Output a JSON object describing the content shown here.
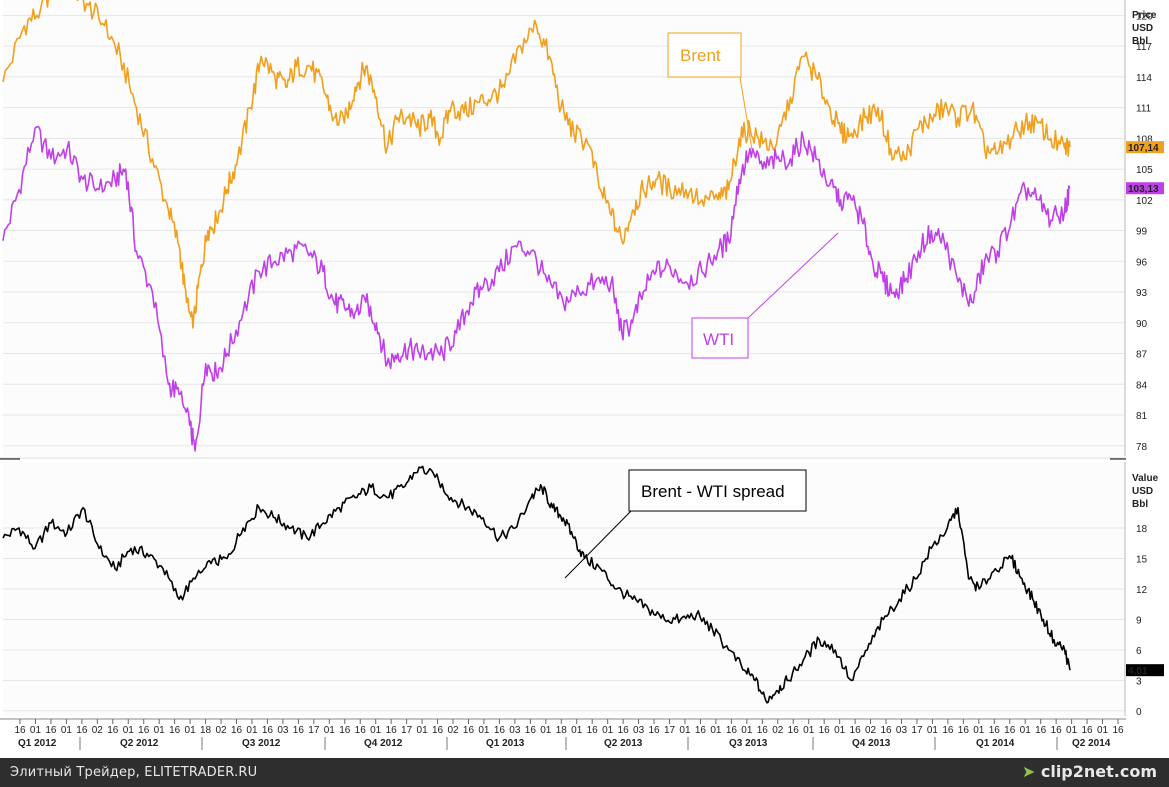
{
  "chart_data": [
    {
      "type": "line",
      "panel": "top",
      "ylabel": [
        "Price",
        "USD",
        "Bbl"
      ],
      "ylim": [
        77,
        121.5
      ],
      "yticks": [
        78,
        81,
        84,
        87,
        90,
        93,
        96,
        99,
        102,
        105,
        108,
        111,
        114,
        117,
        120
      ],
      "grid": true,
      "series": [
        {
          "name": "Brent",
          "color": "#f0a01e",
          "last_value_label": "107,14",
          "points": [
            [
              0,
              113.5
            ],
            [
              0.02,
              119
            ],
            [
              0.035,
              120.5
            ],
            [
              0.05,
              123.5
            ],
            [
              0.065,
              122.5
            ],
            [
              0.08,
              121
            ],
            [
              0.095,
              119
            ],
            [
              0.11,
              116
            ],
            [
              0.125,
              111
            ],
            [
              0.14,
              106
            ],
            [
              0.155,
              101
            ],
            [
              0.165,
              97.5
            ],
            [
              0.172,
              92
            ],
            [
              0.178,
              89.5
            ],
            [
              0.185,
              95
            ],
            [
              0.192,
              99
            ],
            [
              0.2,
              100
            ],
            [
              0.21,
              103
            ],
            [
              0.22,
              106
            ],
            [
              0.232,
              111
            ],
            [
              0.242,
              116
            ],
            [
              0.255,
              114
            ],
            [
              0.265,
              113
            ],
            [
              0.275,
              115
            ],
            [
              0.288,
              115
            ],
            [
              0.3,
              113
            ],
            [
              0.31,
              110
            ],
            [
              0.32,
              109.5
            ],
            [
              0.33,
              113
            ],
            [
              0.34,
              115
            ],
            [
              0.35,
              112
            ],
            [
              0.36,
              107
            ],
            [
              0.37,
              110
            ],
            [
              0.38,
              110
            ],
            [
              0.39,
              109
            ],
            [
              0.4,
              110
            ],
            [
              0.41,
              108
            ],
            [
              0.42,
              111
            ],
            [
              0.432,
              110.5
            ],
            [
              0.445,
              111.5
            ],
            [
              0.458,
              112
            ],
            [
              0.47,
              113
            ],
            [
              0.485,
              117
            ],
            [
              0.5,
              119
            ],
            [
              0.512,
              116
            ],
            [
              0.523,
              111
            ],
            [
              0.535,
              108.5
            ],
            [
              0.548,
              107.5
            ],
            [
              0.56,
              103
            ],
            [
              0.57,
              100.5
            ],
            [
              0.58,
              98
            ],
            [
              0.59,
              101
            ],
            [
              0.6,
              103
            ],
            [
              0.612,
              104
            ],
            [
              0.625,
              103
            ],
            [
              0.64,
              103
            ],
            [
              0.655,
              102
            ],
            [
              0.67,
              102
            ],
            [
              0.68,
              103
            ],
            [
              0.69,
              108
            ],
            [
              0.7,
              109
            ],
            [
              0.712,
              107.5
            ],
            [
              0.725,
              107.5
            ],
            [
              0.738,
              112
            ],
            [
              0.75,
              116
            ],
            [
              0.762,
              114
            ],
            [
              0.775,
              111
            ],
            [
              0.785,
              108.5
            ],
            [
              0.795,
              108.5
            ],
            [
              0.808,
              110
            ],
            [
              0.82,
              111
            ],
            [
              0.832,
              107
            ],
            [
              0.845,
              106
            ],
            [
              0.858,
              109
            ],
            [
              0.87,
              110
            ],
            [
              0.882,
              111
            ],
            [
              0.895,
              110
            ],
            [
              0.908,
              111
            ],
            [
              0.92,
              107
            ],
            [
              0.932,
              106.5
            ],
            [
              0.945,
              108
            ],
            [
              0.958,
              109.5
            ],
            [
              0.97,
              109.5
            ],
            [
              0.982,
              108
            ],
            [
              0.995,
              107
            ],
            [
              1,
              107.14
            ]
          ]
        },
        {
          "name": "WTI",
          "color": "#c040e8",
          "last_value_label": "103,13",
          "points": [
            [
              0,
              98
            ],
            [
              0.015,
              103
            ],
            [
              0.03,
              109
            ],
            [
              0.045,
              106
            ],
            [
              0.06,
              107
            ],
            [
              0.075,
              104
            ],
            [
              0.09,
              103
            ],
            [
              0.105,
              104
            ],
            [
              0.115,
              105
            ],
            [
              0.125,
              97
            ],
            [
              0.14,
              93
            ],
            [
              0.155,
              84
            ],
            [
              0.165,
              83
            ],
            [
              0.175,
              80
            ],
            [
              0.18,
              77.5
            ],
            [
              0.19,
              86
            ],
            [
              0.2,
              85
            ],
            [
              0.21,
              87
            ],
            [
              0.225,
              91
            ],
            [
              0.24,
              95
            ],
            [
              0.255,
              96
            ],
            [
              0.27,
              97
            ],
            [
              0.285,
              97
            ],
            [
              0.3,
              95
            ],
            [
              0.31,
              92
            ],
            [
              0.32,
              91.5
            ],
            [
              0.33,
              91
            ],
            [
              0.34,
              92
            ],
            [
              0.35,
              90
            ],
            [
              0.36,
              86
            ],
            [
              0.37,
              87
            ],
            [
              0.38,
              87.5
            ],
            [
              0.39,
              87
            ],
            [
              0.4,
              87
            ],
            [
              0.412,
              87
            ],
            [
              0.425,
              89
            ],
            [
              0.438,
              92
            ],
            [
              0.45,
              93.5
            ],
            [
              0.465,
              95
            ],
            [
              0.48,
              97.5
            ],
            [
              0.495,
              97
            ],
            [
              0.51,
              94
            ],
            [
              0.525,
              92
            ],
            [
              0.54,
              93
            ],
            [
              0.555,
              94
            ],
            [
              0.57,
              94
            ],
            [
              0.58,
              89
            ],
            [
              0.59,
              90
            ],
            [
              0.6,
              93
            ],
            [
              0.612,
              95
            ],
            [
              0.625,
              95.5
            ],
            [
              0.64,
              94
            ],
            [
              0.655,
              95
            ],
            [
              0.67,
              97
            ],
            [
              0.68,
              98
            ],
            [
              0.69,
              104
            ],
            [
              0.7,
              107
            ],
            [
              0.712,
              105
            ],
            [
              0.725,
              106
            ],
            [
              0.738,
              106
            ],
            [
              0.75,
              108
            ],
            [
              0.762,
              106
            ],
            [
              0.775,
              103.5
            ],
            [
              0.785,
              102
            ],
            [
              0.795,
              102
            ],
            [
              0.805,
              100
            ],
            [
              0.815,
              96
            ],
            [
              0.825,
              94
            ],
            [
              0.835,
              93
            ],
            [
              0.845,
              94
            ],
            [
              0.858,
              97
            ],
            [
              0.87,
              99
            ],
            [
              0.882,
              98
            ],
            [
              0.895,
              94
            ],
            [
              0.908,
              92
            ],
            [
              0.92,
              96
            ],
            [
              0.932,
              97
            ],
            [
              0.945,
              100
            ],
            [
              0.958,
              103
            ],
            [
              0.97,
              102
            ],
            [
              0.982,
              100
            ],
            [
              0.995,
              101
            ],
            [
              1,
              103.13
            ]
          ]
        }
      ],
      "annotations": [
        {
          "text": "Brent",
          "color": "#f0a01e"
        },
        {
          "text": "WTI",
          "color": "#c040e8"
        }
      ]
    },
    {
      "type": "line",
      "panel": "bottom",
      "ylabel": [
        "Value",
        "USD",
        "Bbl"
      ],
      "ylim": [
        -0.5,
        24.5
      ],
      "yticks": [
        0,
        3,
        6,
        9,
        12,
        15,
        18
      ],
      "grid": true,
      "series": [
        {
          "name": "Brent - WTI spread",
          "color": "#000000",
          "last_value_label": "4,01",
          "points": [
            [
              0,
              17
            ],
            [
              0.015,
              18
            ],
            [
              0.03,
              16
            ],
            [
              0.045,
              18.5
            ],
            [
              0.06,
              17.5
            ],
            [
              0.075,
              20
            ],
            [
              0.09,
              16
            ],
            [
              0.105,
              14
            ],
            [
              0.12,
              16
            ],
            [
              0.135,
              15.5
            ],
            [
              0.15,
              14
            ],
            [
              0.165,
              11
            ],
            [
              0.18,
              13
            ],
            [
              0.195,
              14.5
            ],
            [
              0.21,
              15
            ],
            [
              0.225,
              18
            ],
            [
              0.24,
              20
            ],
            [
              0.255,
              19
            ],
            [
              0.27,
              18
            ],
            [
              0.285,
              17
            ],
            [
              0.3,
              18.5
            ],
            [
              0.315,
              20
            ],
            [
              0.33,
              21
            ],
            [
              0.345,
              22
            ],
            [
              0.36,
              21
            ],
            [
              0.375,
              22
            ],
            [
              0.39,
              24
            ],
            [
              0.405,
              23
            ],
            [
              0.42,
              21
            ],
            [
              0.435,
              20
            ],
            [
              0.45,
              19
            ],
            [
              0.465,
              17
            ],
            [
              0.48,
              18
            ],
            [
              0.495,
              21
            ],
            [
              0.505,
              22
            ],
            [
              0.515,
              20
            ],
            [
              0.525,
              19
            ],
            [
              0.535,
              17
            ],
            [
              0.545,
              15
            ],
            [
              0.56,
              14
            ],
            [
              0.575,
              12
            ],
            [
              0.59,
              11
            ],
            [
              0.605,
              10
            ],
            [
              0.62,
              9
            ],
            [
              0.635,
              9
            ],
            [
              0.65,
              9.5
            ],
            [
              0.665,
              8
            ],
            [
              0.68,
              6
            ],
            [
              0.695,
              4
            ],
            [
              0.705,
              3
            ],
            [
              0.715,
              1
            ],
            [
              0.725,
              2
            ],
            [
              0.735,
              3
            ],
            [
              0.75,
              5
            ],
            [
              0.765,
              7
            ],
            [
              0.78,
              6
            ],
            [
              0.795,
              3
            ],
            [
              0.81,
              6
            ],
            [
              0.825,
              9
            ],
            [
              0.84,
              11
            ],
            [
              0.855,
              13
            ],
            [
              0.87,
              16
            ],
            [
              0.885,
              18
            ],
            [
              0.895,
              20
            ],
            [
              0.905,
              13
            ],
            [
              0.915,
              12
            ],
            [
              0.93,
              14
            ],
            [
              0.945,
              15
            ],
            [
              0.955,
              13
            ],
            [
              0.965,
              11
            ],
            [
              0.975,
              9
            ],
            [
              0.985,
              7
            ],
            [
              0.995,
              6
            ],
            [
              1,
              4.01
            ]
          ]
        }
      ],
      "annotations": [
        {
          "text": "Brent - WTI spread",
          "color": "#000000"
        }
      ]
    }
  ],
  "x_axis": {
    "tick_labels": [
      "16",
      "01",
      "16",
      "01",
      "16",
      "02",
      "16",
      "01",
      "16",
      "01",
      "16",
      "01",
      "18",
      "02",
      "16",
      "01",
      "16",
      "03",
      "16",
      "17",
      "01",
      "16",
      "16",
      "01",
      "16",
      "17",
      "01",
      "16",
      "02",
      "16",
      "01",
      "16",
      "03",
      "16",
      "01",
      "18",
      "01",
      "16",
      "01",
      "16",
      "03",
      "16",
      "17",
      "01",
      "16",
      "01",
      "16",
      "01",
      "16",
      "02",
      "16",
      "01",
      "16",
      "01",
      "16",
      "02",
      "16",
      "03",
      "17",
      "01",
      "16",
      "16",
      "01",
      "16",
      "16",
      "01",
      "16",
      "16",
      "01",
      "16",
      "01",
      "16"
    ],
    "quarter_labels": [
      "Q1 2012",
      "Q2 2012",
      "Q3 2012",
      "Q4 2012",
      "Q1 2013",
      "Q2 2013",
      "Q3 2013",
      "Q4 2013",
      "Q1 2014",
      "Q2 2014"
    ]
  },
  "footer": {
    "left_text": "Элитный Трейдер, ELITETRADER.RU",
    "right_text": "clip2net.com",
    "right_icon": "leaf-icon"
  }
}
